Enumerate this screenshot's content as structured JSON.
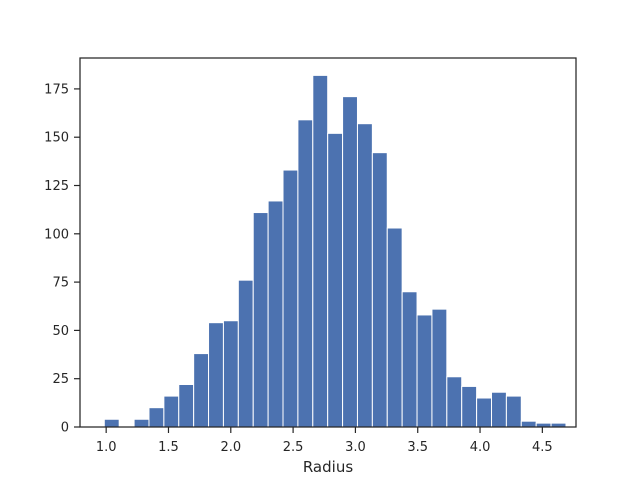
{
  "chart_data": {
    "type": "bar",
    "title": "",
    "xlabel": "Radius",
    "ylabel": "",
    "xlim": [
      0.79,
      4.77
    ],
    "ylim": [
      0,
      191
    ],
    "bin_start": 0.985,
    "bin_width": 0.1195,
    "values": [
      4,
      0,
      4,
      10,
      16,
      22,
      38,
      54,
      55,
      76,
      111,
      117,
      133,
      159,
      182,
      152,
      171,
      157,
      142,
      103,
      70,
      58,
      61,
      26,
      21,
      15,
      18,
      16,
      3,
      2,
      2
    ],
    "xticks": [
      1.0,
      1.5,
      2.0,
      2.5,
      3.0,
      3.5,
      4.0,
      4.5
    ],
    "xtick_labels": [
      "1.0",
      "1.5",
      "2.0",
      "2.5",
      "3.0",
      "3.5",
      "4.0",
      "4.5"
    ],
    "yticks": [
      0,
      25,
      50,
      75,
      100,
      125,
      150,
      175
    ],
    "ytick_labels": [
      "0",
      "25",
      "50",
      "75",
      "100",
      "125",
      "150",
      "175"
    ],
    "grid": false,
    "legend": "none",
    "colors": {
      "bar": "#4c72b0",
      "bar_edge": "#ffffff",
      "axis": "#262626"
    }
  }
}
